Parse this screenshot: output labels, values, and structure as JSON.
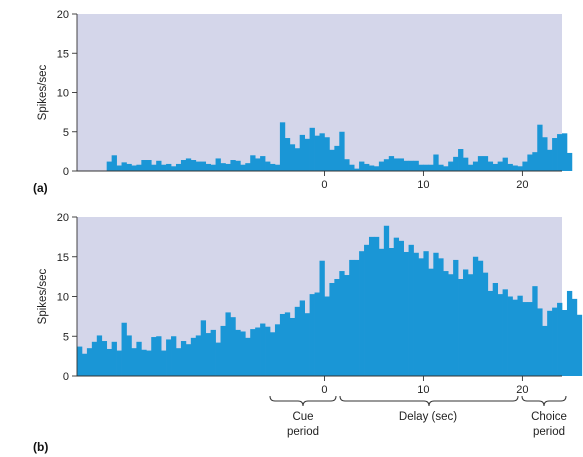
{
  "chart_data": [
    {
      "type": "bar",
      "panel_label": "(a)",
      "title": "",
      "xlabel": "",
      "ylabel": "Spikes/sec",
      "ylim": [
        0,
        20
      ],
      "yticks": [
        0,
        5,
        10,
        15,
        20
      ],
      "xlim": [
        -25,
        24
      ],
      "xticks": [
        0,
        10,
        20
      ],
      "x_start": -25,
      "bin_width": 0.5,
      "background_color": "#d4d6ea",
      "bar_color": "#1a96d6",
      "values": [
        0,
        0,
        0,
        0,
        0,
        0,
        1.2,
        2.0,
        0.7,
        1.1,
        0.9,
        0.7,
        0.8,
        1.4,
        1.4,
        0.8,
        1.3,
        0.8,
        0.9,
        0.6,
        0.9,
        1.4,
        1.6,
        1.4,
        1.2,
        1.2,
        0.9,
        0.8,
        1.6,
        1.0,
        0.9,
        1.4,
        1.3,
        0.8,
        1.0,
        2.0,
        1.6,
        1.9,
        1.2,
        0.9,
        0.8,
        6.2,
        4.2,
        3.4,
        2.9,
        4.6,
        4.1,
        5.5,
        4.5,
        4.8,
        4.3,
        2.7,
        3.2,
        5.0,
        1.5,
        0.8,
        0.3,
        1.2,
        0.9,
        0.7,
        0.6,
        1.2,
        1.5,
        1.9,
        1.6,
        1.6,
        1.3,
        1.3,
        1.3,
        0.8,
        0.8,
        0.8,
        2.1,
        0.8,
        0.6,
        1.2,
        1.8,
        2.8,
        1.7,
        0.8,
        1.2,
        1.9,
        1.9,
        1.2,
        0.9,
        1.2,
        1.7,
        0.9,
        0.7,
        0.6,
        1.2,
        2.1,
        2.4,
        5.9,
        4.3,
        2.7,
        4.2,
        4.7,
        4.8,
        2.3
      ]
    },
    {
      "type": "bar",
      "panel_label": "(b)",
      "title": "",
      "xlabel": "",
      "ylabel": "Spikes/sec",
      "ylim": [
        0,
        20
      ],
      "yticks": [
        0,
        5,
        10,
        15,
        20
      ],
      "xlim": [
        -25,
        24
      ],
      "xticks": [
        0,
        10,
        20
      ],
      "x_start": -25,
      "bin_width": 0.5,
      "background_color": "#d4d6ea",
      "bar_color": "#1a96d6",
      "values": [
        3.7,
        2.8,
        3.5,
        4.3,
        5.1,
        4.4,
        3.4,
        4.3,
        3.2,
        6.7,
        5.1,
        3.5,
        4.3,
        3.3,
        3.2,
        4.9,
        5.0,
        3.2,
        4.6,
        5.0,
        3.5,
        4.4,
        4.0,
        4.8,
        5.1,
        7.0,
        5.4,
        5.8,
        4.2,
        6.3,
        8.0,
        7.4,
        5.8,
        5.6,
        4.8,
        5.9,
        6.1,
        6.6,
        6.2,
        5.5,
        6.5,
        7.8,
        8.0,
        7.3,
        8.7,
        9.5,
        7.9,
        10.3,
        10.5,
        14.5,
        10.0,
        11.7,
        12.2,
        13.2,
        12.7,
        14.6,
        14.6,
        15.7,
        16.5,
        17.5,
        17.5,
        16.0,
        18.9,
        16.1,
        17.4,
        17.0,
        15.6,
        16.5,
        15.5,
        14.8,
        15.7,
        13.5,
        15.5,
        14.8,
        13.2,
        12.8,
        14.6,
        12.2,
        13.4,
        12.8,
        15.0,
        14.5,
        13.0,
        10.7,
        11.7,
        10.3,
        10.9,
        10.0,
        9.6,
        10.1,
        9.3,
        9.3,
        11.3,
        8.5,
        6.3,
        8.2,
        8.6,
        9.2,
        8.3,
        10.7,
        9.7,
        7.7
      ]
    }
  ],
  "annotations": {
    "cue_label": [
      "Cue",
      "period"
    ],
    "delay_label": "Delay (sec)",
    "choice_label": [
      "Choice",
      "period"
    ]
  }
}
